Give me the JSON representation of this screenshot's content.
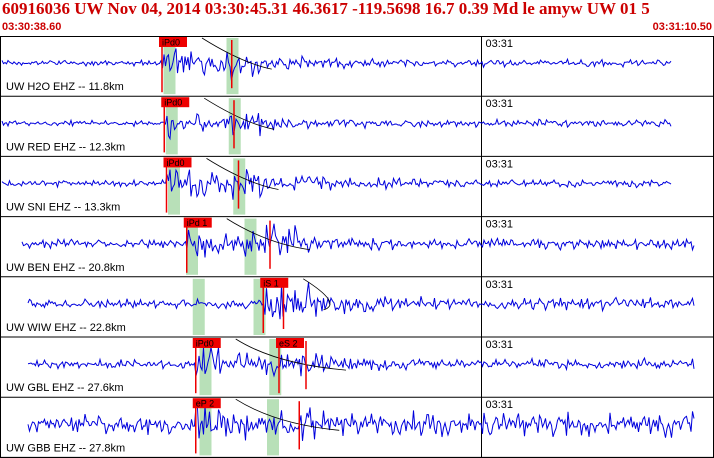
{
  "header": {
    "title": "60916036 UW Nov 04, 2014 03:30:45.31   46.3617 -119.5698 16.7 0.39 Md le amyw UW 01   5",
    "start_time": "03:30:38.60",
    "end_time": "03:31:10.50"
  },
  "colors": {
    "trace": "#0000dd",
    "pick": "#ee0000",
    "window": "#b8e0b8",
    "border": "#000000",
    "header_text": "#cc0000"
  },
  "traces": [
    {
      "label": "UW H2O EHZ -- 11.8km",
      "minute_mark": "03:31",
      "picks": [
        {
          "label": "iPd0",
          "t": 7.2
        }
      ],
      "windows": [
        7.0,
        9.8
      ],
      "s_time": 10.3,
      "amplitude": 0.3,
      "noise": 0.12
    },
    {
      "label": "UW RED EHZ -- 12.3km",
      "minute_mark": "03:31",
      "picks": [
        {
          "label": "iPd0",
          "t": 7.3
        }
      ],
      "windows": [
        7.1,
        9.9
      ],
      "s_time": 10.4,
      "amplitude": 0.28,
      "noise": 0.12
    },
    {
      "label": "UW SNI EHZ -- 13.3km",
      "minute_mark": "03:31",
      "picks": [
        {
          "label": "iPd0",
          "t": 7.4
        }
      ],
      "windows": [
        7.2,
        10.1
      ],
      "s_time": 10.6,
      "amplitude": 0.35,
      "noise": 0.13
    },
    {
      "label": "UW BEN EHZ -- 20.8km",
      "minute_mark": "03:31",
      "picks": [
        {
          "label": "iPd 1",
          "t": 8.3
        }
      ],
      "windows": [
        8.0,
        10.6
      ],
      "s_time": 12.0,
      "amplitude": 0.4,
      "noise": 0.18
    },
    {
      "label": "UW WIW EHZ -- 22.8km",
      "minute_mark": "03:31",
      "picks": [
        {
          "label": "iS 1",
          "t": 11.7
        }
      ],
      "windows": [
        8.3,
        11.0
      ],
      "s_time": 12.6,
      "amplitude": 0.38,
      "noise": 0.2
    },
    {
      "label": "UW GBL EHZ -- 27.6km",
      "minute_mark": "03:31",
      "picks": [
        {
          "label": "iPd0",
          "t": 8.7
        },
        {
          "label": "eS 2",
          "t": 12.4
        }
      ],
      "windows": [
        8.6,
        11.7
      ],
      "s_time": 13.6,
      "amplitude": 0.38,
      "noise": 0.18
    },
    {
      "label": "UW GBB EHZ -- 27.8km",
      "minute_mark": "03:31",
      "picks": [
        {
          "label": "eP 2",
          "t": 8.7
        }
      ],
      "windows": [
        8.6,
        11.6
      ],
      "s_time": 13.3,
      "amplitude": 0.5,
      "noise": 0.4
    }
  ]
}
